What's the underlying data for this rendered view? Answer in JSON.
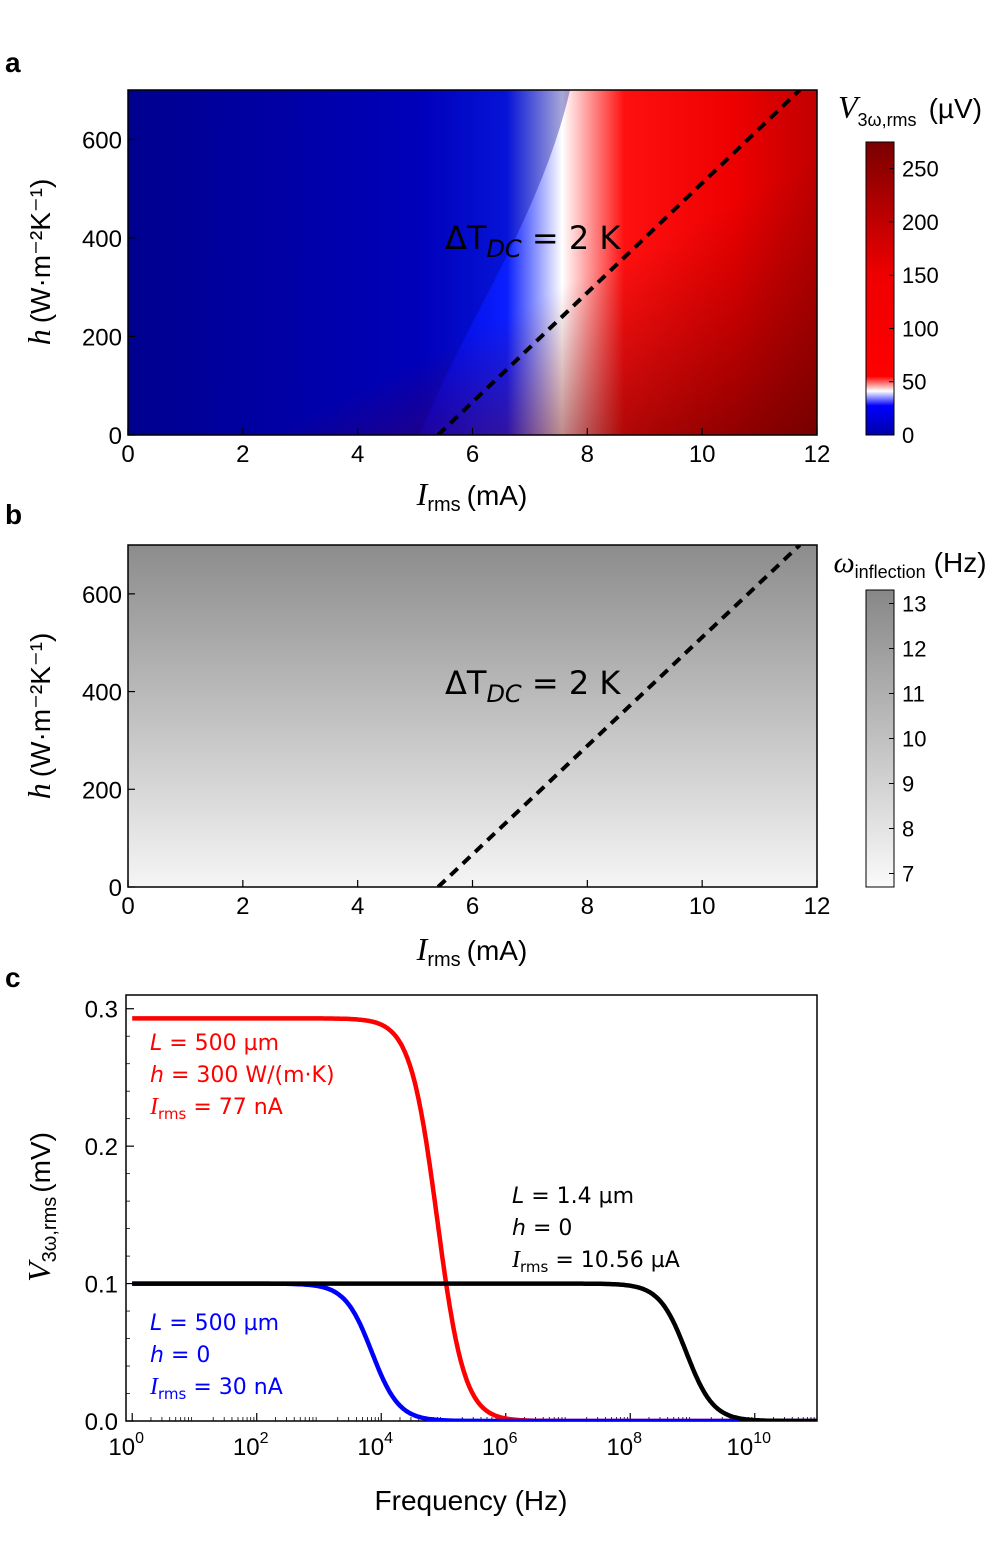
{
  "chart_data": [
    {
      "panel": "a",
      "type": "heatmap",
      "xlabel_sym": "I",
      "xlabel_sub": "rms",
      "xlabel_unit": "(mA)",
      "ylabel_sym": "h",
      "ylabel_unit": "(W·m⁻²K⁻¹)",
      "xlim": [
        0,
        12
      ],
      "ylim": [
        0,
        700
      ],
      "xticks": [
        "0",
        "2",
        "4",
        "6",
        "8",
        "10",
        "12"
      ],
      "yticks": [
        "0",
        "200",
        "400",
        "600"
      ],
      "colorbar": {
        "label_sym": "V",
        "label_sub": "3ω,rms",
        "label_unit": "(µV)",
        "range": [
          0,
          275
        ],
        "ticks": [
          "0",
          "50",
          "100",
          "150",
          "200",
          "250"
        ],
        "colormap": [
          "#0000aa",
          "#0000ff",
          "#ffffff",
          "#ff0000",
          "#7a0000"
        ]
      },
      "contour": {
        "label": "ΔT",
        "label_sub": "DC",
        "label_rest": " = 2 K",
        "style": "dashed",
        "color": "#000000"
      },
      "contour_points": [
        [
          5.4,
          0
        ],
        [
          6.3,
          100
        ],
        [
          7.2,
          200
        ],
        [
          8.1,
          300
        ],
        [
          9.0,
          400
        ],
        [
          9.9,
          500
        ],
        [
          10.8,
          600
        ],
        [
          11.7,
          700
        ]
      ]
    },
    {
      "panel": "b",
      "type": "heatmap",
      "xlabel_sym": "I",
      "xlabel_sub": "rms",
      "xlabel_unit": "(mA)",
      "ylabel_sym": "h",
      "ylabel_unit": "(W·m⁻²K⁻¹)",
      "xlim": [
        0,
        12
      ],
      "ylim": [
        0,
        700
      ],
      "xticks": [
        "0",
        "2",
        "4",
        "6",
        "8",
        "10",
        "12"
      ],
      "yticks": [
        "0",
        "200",
        "400",
        "600"
      ],
      "colorbar": {
        "label_sym": "ω",
        "label_sub": "inflection",
        "label_unit": "(Hz)",
        "range": [
          6.7,
          13.3
        ],
        "ticks": [
          "7",
          "8",
          "9",
          "10",
          "11",
          "12",
          "13"
        ],
        "colormap": [
          "#f5f5f5",
          "#888888"
        ]
      },
      "contour": {
        "label": "ΔT",
        "label_sub": "DC",
        "label_rest": " = 2 K",
        "style": "dashed",
        "color": "#000000"
      },
      "contour_points": [
        [
          5.4,
          0
        ],
        [
          6.3,
          100
        ],
        [
          7.2,
          200
        ],
        [
          8.1,
          300
        ],
        [
          9.0,
          400
        ],
        [
          9.9,
          500
        ],
        [
          10.8,
          600
        ],
        [
          11.7,
          700
        ]
      ]
    },
    {
      "panel": "c",
      "type": "line",
      "xscale": "log",
      "xlabel": "Frequency (Hz)",
      "ylabel_sym": "V",
      "ylabel_sub": "3ω,rms",
      "ylabel_unit": "(mV)",
      "xlim_log10": [
        -0.1,
        11
      ],
      "ylim": [
        0,
        0.31
      ],
      "xticks_exp": [
        "0",
        "2",
        "4",
        "6",
        "8",
        "10"
      ],
      "yticks": [
        "0.0",
        "0.1",
        "0.2",
        "0.3"
      ],
      "series": [
        {
          "color": "#ff0000",
          "plateau": 0.293,
          "fc_log10": 4.9,
          "annotation": [
            "L = 500 µm",
            "h = 300 W/(m·K)",
            "I rms = 77 nA"
          ]
        },
        {
          "color": "#0000ff",
          "plateau": 0.1,
          "fc_log10": 3.85,
          "annotation": [
            "L = 500 µm",
            "h = 0",
            "I rms = 30 nA"
          ]
        },
        {
          "color": "#000000",
          "plateau": 0.1,
          "fc_log10": 8.9,
          "annotation": [
            "L = 1.4 µm",
            "h = 0",
            "I rms = 10.56 µA"
          ]
        }
      ]
    }
  ],
  "panel_letters": [
    "a",
    "b",
    "c"
  ],
  "annotations_c": {
    "red": {
      "l_sym": "L",
      "l_val": " = 500 µm",
      "h_sym": "h",
      "h_val": " = 300 W/(m·K)",
      "i_sym": "I",
      "i_sub": "rms",
      "i_val": " = 77 nA"
    },
    "blue": {
      "l_sym": "L",
      "l_val": " = 500 µm",
      "h_sym": "h",
      "h_val": " = 0",
      "i_sym": "I",
      "i_sub": "rms",
      "i_val": " = 30 nA"
    },
    "black": {
      "l_sym": "L",
      "l_val": " = 1.4 µm",
      "h_sym": "h",
      "h_val": " = 0",
      "i_sym": "I",
      "i_sub": "rms",
      "i_val": " = 10.56 µA"
    }
  }
}
